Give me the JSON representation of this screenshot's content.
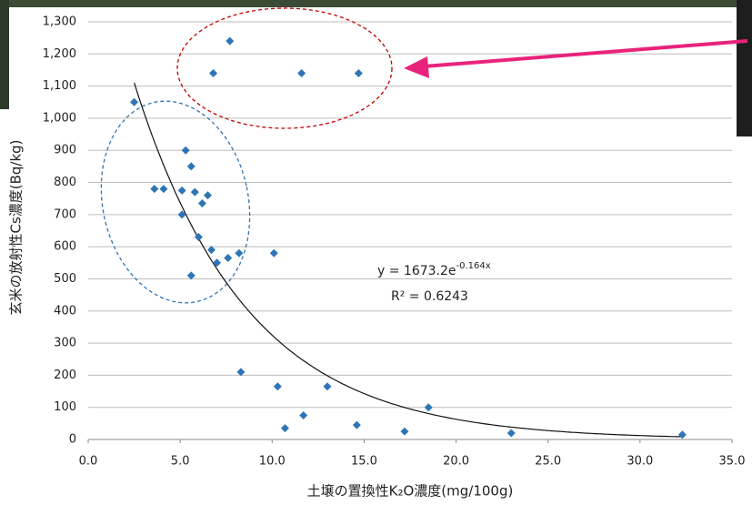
{
  "chart_data": {
    "type": "scatter",
    "x_label": "土壌の置換性K₂O濃度(mg/100g)",
    "y_label": "玄米の放射性Cs濃度(Bq/kg)",
    "xlim": [
      0,
      35
    ],
    "ylim": [
      0,
      1300
    ],
    "xticks": [
      {
        "value": 0,
        "label": "0.0"
      },
      {
        "value": 5,
        "label": "5.0"
      },
      {
        "value": 10,
        "label": "10.0"
      },
      {
        "value": 15,
        "label": "15.0"
      },
      {
        "value": 20,
        "label": "20.0"
      },
      {
        "value": 25,
        "label": "25.0"
      },
      {
        "value": 30,
        "label": "30.0"
      },
      {
        "value": 35,
        "label": "35.0"
      }
    ],
    "yticks": [
      0,
      100,
      200,
      300,
      400,
      500,
      600,
      700,
      800,
      900,
      {
        "value": 1000,
        "label": "1,000"
      },
      {
        "value": 1100,
        "label": "1,100"
      },
      {
        "value": 1200,
        "label": "1,200"
      },
      {
        "value": 1300,
        "label": "1,300"
      }
    ],
    "grid": true,
    "color": "#2e75b6",
    "x": [
      2.5,
      3.6,
      4.1,
      5.1,
      5.1,
      5.3,
      5.6,
      5.6,
      5.8,
      6.0,
      6.2,
      6.5,
      6.7,
      6.8,
      7.0,
      7.7,
      7.6,
      8.2,
      8.3,
      10.1,
      10.3,
      10.7,
      11.6,
      11.7,
      13.0,
      14.6,
      14.7,
      17.2,
      18.5,
      23.0,
      32.3
    ],
    "values": [
      1050,
      780,
      780,
      775,
      700,
      900,
      850,
      510,
      770,
      630,
      735,
      760,
      590,
      1140,
      550,
      1240,
      565,
      580,
      210,
      580,
      165,
      35,
      1140,
      75,
      165,
      45,
      1140,
      25,
      100,
      20,
      15
    ],
    "trendline": {
      "a": 1673.2,
      "k": -0.164,
      "x_start": 2.5,
      "x_end": 32.4
    },
    "equation": {
      "text": "y = 1673.2e",
      "exponent": "-0.164x"
    },
    "r_squared": "R² = 0.6243"
  }
}
